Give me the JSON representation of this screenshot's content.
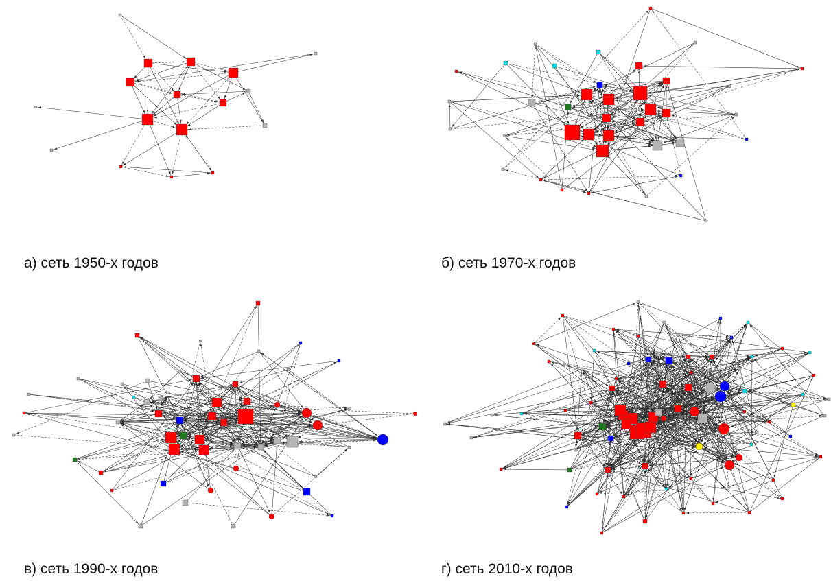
{
  "figure": {
    "panels": [
      {
        "id": "a",
        "caption": "а) сеть 1950-х годов"
      },
      {
        "id": "b",
        "caption": "б) сеть 1970-х годов"
      },
      {
        "id": "c",
        "caption": "в) сеть 1990-х годов"
      },
      {
        "id": "d",
        "caption": "г) сеть 2010-х годов"
      }
    ],
    "node_colors": {
      "red": "#ff0000",
      "gray": "#b4b4b4",
      "blue": "#0000ff",
      "green": "#1f7a1f",
      "cyan": "#00e5e5",
      "yellow": "#ffee00",
      "edge": "#333333"
    },
    "node_shapes": [
      "square",
      "circle"
    ]
  }
}
